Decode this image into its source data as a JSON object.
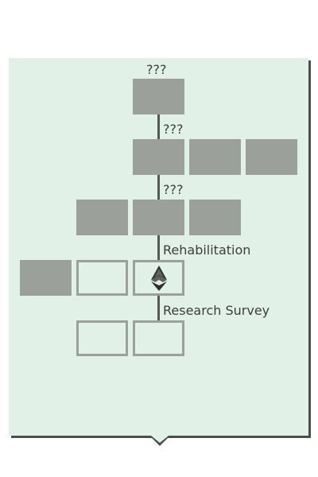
{
  "tree": {
    "tier_labels": [
      "???",
      "???",
      "???",
      "Rehabilitation",
      "Research Survey"
    ],
    "tiers": [
      {
        "nodes": [
          "locked"
        ]
      },
      {
        "nodes": [
          "locked",
          "locked",
          "locked"
        ]
      },
      {
        "nodes": [
          "locked",
          "locked",
          "locked"
        ]
      },
      {
        "nodes": [
          "locked",
          "open",
          "current"
        ]
      },
      {
        "nodes": [
          "open",
          "open"
        ]
      }
    ]
  },
  "colors": {
    "panel": "#e2f1e7",
    "locked_node": "#9ba09a",
    "connector": "#555856",
    "shadow": "#4d4f4d"
  },
  "icons": {
    "current_marker": "player-marker-icon",
    "pointer": "tooltip-pointer-icon"
  }
}
